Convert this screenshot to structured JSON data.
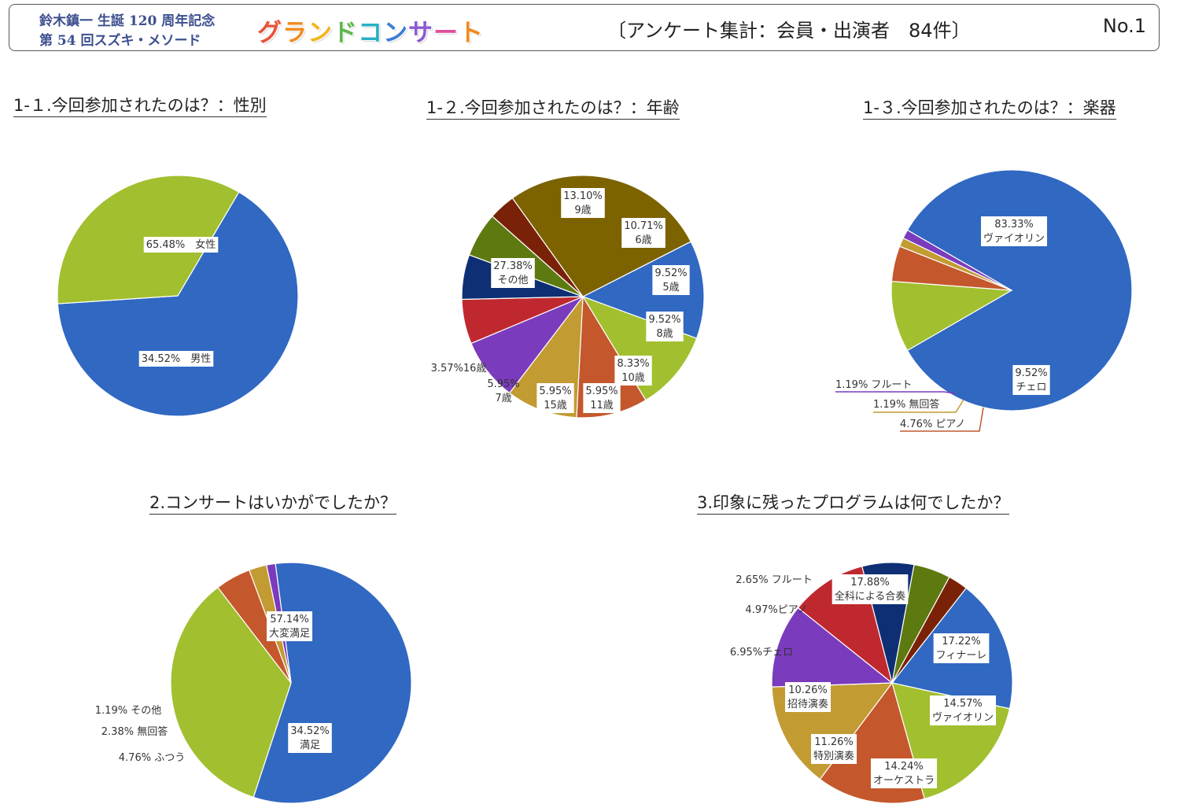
{
  "header": {
    "subtitle_line1": "鈴木鎮一 生誕 120 周年記念",
    "subtitle_line2": "第 54 回スズキ・メソード",
    "brand": "グランドコンサート",
    "brand_colors": [
      "#e8533a",
      "#f08a1c",
      "#f2b51c",
      "#5fb54a",
      "#2ab0c5",
      "#3d7bd6",
      "#8a5bd1",
      "#e04c9b",
      "#f08a1c"
    ],
    "survey": "〔アンケート集計：会員・出演者　84件〕",
    "page_no": "No.1"
  },
  "chart_data": [
    {
      "type": "pie",
      "title": "1-１.今回参加されたのは？：性別",
      "slices": [
        {
          "label": "女性",
          "value": 65.48,
          "display": "65.48%　女性",
          "color": "#3068c2"
        },
        {
          "label": "男性",
          "value": 34.52,
          "display": "34.52%　男性",
          "color": "#a2bf2f"
        }
      ]
    },
    {
      "type": "pie",
      "title": "1-２.今回参加されたのは？：年齢",
      "slices": [
        {
          "label": "9歳",
          "value": 13.1,
          "display": "13.10%",
          "color": "#3068c2"
        },
        {
          "label": "6歳",
          "value": 10.71,
          "display": "10.71%",
          "color": "#a2bf2f"
        },
        {
          "label": "5歳",
          "value": 9.52,
          "display": "9.52%",
          "color": "#c4582c"
        },
        {
          "label": "8歳",
          "value": 9.52,
          "display": "9.52%",
          "color": "#c29b33"
        },
        {
          "label": "10歳",
          "value": 8.33,
          "display": "8.33%",
          "color": "#7b3bbd"
        },
        {
          "label": "11歳",
          "value": 5.95,
          "display": "5.95%",
          "color": "#c0282f"
        },
        {
          "label": "15歳",
          "value": 5.95,
          "display": "5.95%",
          "color": "#0e2f74"
        },
        {
          "label": "7歳",
          "value": 5.95,
          "display": "5.95%",
          "color": "#5d7a10"
        },
        {
          "label": "16歳",
          "value": 3.57,
          "display": "3.57%",
          "color": "#7a2208"
        },
        {
          "label": "その他",
          "value": 27.38,
          "display": "27.38%",
          "color": "#7c6300"
        }
      ]
    },
    {
      "type": "pie",
      "title": "1-３.今回参加されたのは？：楽器",
      "slices": [
        {
          "label": "ヴァイオリン",
          "value": 83.33,
          "display": "83.33%",
          "color": "#3068c2"
        },
        {
          "label": "チェロ",
          "value": 9.52,
          "display": "9.52%",
          "color": "#a2bf2f"
        },
        {
          "label": "ピアノ",
          "value": 4.76,
          "display": "4.76%",
          "color": "#c4582c"
        },
        {
          "label": "無回答",
          "value": 1.19,
          "display": "1.19%",
          "color": "#c29b33"
        },
        {
          "label": "フルート",
          "value": 1.19,
          "display": "1.19%",
          "color": "#7b3bbd"
        }
      ]
    },
    {
      "type": "pie",
      "title": "2.コンサートはいかがでしたか？",
      "slices": [
        {
          "label": "大変満足",
          "value": 57.14,
          "display": "57.14%",
          "color": "#3068c2"
        },
        {
          "label": "満足",
          "value": 34.52,
          "display": "34.52%",
          "color": "#a2bf2f"
        },
        {
          "label": "ふつう",
          "value": 4.76,
          "display": "4.76%",
          "color": "#c4582c"
        },
        {
          "label": "無回答",
          "value": 2.38,
          "display": "2.38%",
          "color": "#c29b33"
        },
        {
          "label": "その他",
          "value": 1.19,
          "display": "1.19%",
          "color": "#7b3bbd"
        }
      ]
    },
    {
      "type": "pie",
      "title": "3.印象に残ったプログラムは何でしたか？",
      "slices": [
        {
          "label": "全科による合奏",
          "value": 17.88,
          "display": "17.88%",
          "color": "#3068c2"
        },
        {
          "label": "フィナーレ",
          "value": 17.22,
          "display": "17.22%",
          "color": "#a2bf2f"
        },
        {
          "label": "ヴァイオリン",
          "value": 14.57,
          "display": "14.57%",
          "color": "#c4582c"
        },
        {
          "label": "オーケストラ",
          "value": 14.24,
          "display": "14.24%",
          "color": "#c29b33"
        },
        {
          "label": "特別演奏",
          "value": 11.26,
          "display": "11.26%",
          "color": "#7b3bbd"
        },
        {
          "label": "招待演奏",
          "value": 10.26,
          "display": "10.26%",
          "color": "#c0282f"
        },
        {
          "label": "チェロ",
          "value": 6.95,
          "display": "6.95%",
          "color": "#0e2f74"
        },
        {
          "label": "ピアノ",
          "value": 4.97,
          "display": "4.97%",
          "color": "#5d7a10"
        },
        {
          "label": "フルート",
          "value": 2.65,
          "display": "2.65%",
          "color": "#7a2208"
        }
      ]
    }
  ]
}
